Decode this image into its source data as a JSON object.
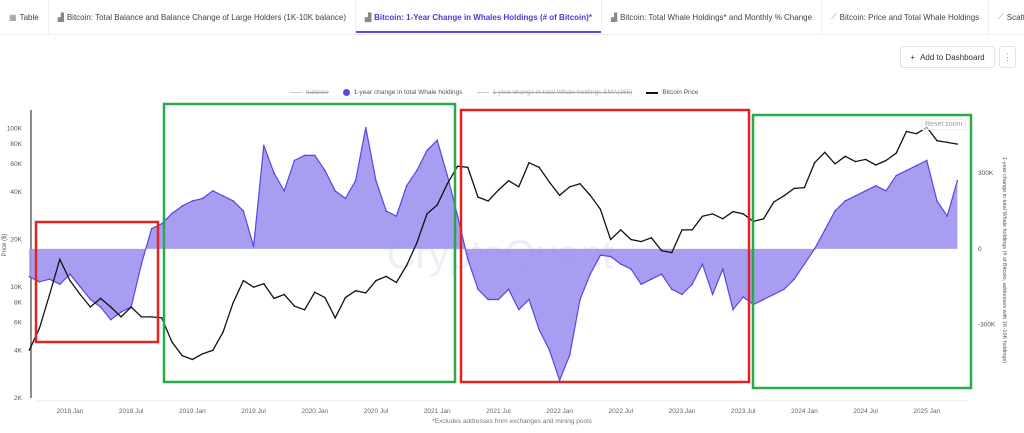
{
  "tabs": [
    {
      "label": "Table",
      "icon": "table-icon",
      "active": false
    },
    {
      "label": "Bitcoin: Total Balance and Balance Change of Large Holders (1K-10K balance)",
      "icon": "bar-chart-icon",
      "active": false
    },
    {
      "label": "Bitcoin: 1-Year Change in Whales Holdings (# of Bitcoin)*",
      "icon": "bar-chart-icon",
      "active": true
    },
    {
      "label": "Bitcoin: Total Whale Holdings* and Monthly % Change",
      "icon": "bar-chart-icon",
      "active": false
    },
    {
      "label": "Bitcoin: Price and Total Whale Holdings",
      "icon": "line-chart-icon",
      "active": false
    },
    {
      "label": "Scatter",
      "icon": "line-chart-icon",
      "active": false
    }
  ],
  "toolbar": {
    "add_to_dashboard": "Add to Dashboard",
    "plus_icon": "+",
    "more_icon": "⋮"
  },
  "legend": [
    {
      "label": "balance",
      "enabled": false
    },
    {
      "label": "1-year change in total Whale holdings",
      "enabled": true
    },
    {
      "label": "1-year change in total Whale holdings SMA(365)",
      "enabled": false
    },
    {
      "label": "Bitcoin Price",
      "enabled": true
    }
  ],
  "reset_zoom": "Reset zoom",
  "watermark": "CryptoQuant",
  "footnote": "*Excludes addresses from exchanges and mining pools",
  "colors": {
    "accent": "#5b45e0",
    "whale_fill": "#9d93f0",
    "price": "#111111",
    "red_box": "#e02424",
    "green_box": "#2aa84a"
  },
  "chart_data": {
    "type": "area+line",
    "ylabel_left": "Price ($)",
    "ylabel_right": "1-year change in total Whale holdings (# of Bitcoin, addresses with 1K-10K holdings)",
    "y_left_scale": "log",
    "y_left_lim": [
      2000,
      122000
    ],
    "y_left_ticks": [
      "2K",
      "4K",
      "6K",
      "8K",
      "10K",
      "20K",
      "40K",
      "60K",
      "80K",
      "100K"
    ],
    "y_left_tick_values": [
      2000,
      4000,
      6000,
      8000,
      10000,
      20000,
      40000,
      60000,
      80000,
      100000
    ],
    "y_right_lim": [
      -590000,
      530000
    ],
    "y_right_ticks": [
      "-300K",
      "0",
      "300K"
    ],
    "y_right_tick_values": [
      -300000,
      0,
      300000
    ],
    "x_ticks": [
      "2018 Jan",
      "2018 Jul",
      "2019 Jan",
      "2019 Jul",
      "2020 Jan",
      "2020 Jul",
      "2021 Jan",
      "2021 Jul",
      "2022 Jan",
      "2022 Jul",
      "2023 Jan",
      "2023 Jul",
      "2024 Jan",
      "2024 Jul",
      "2025 Jan"
    ],
    "x_tick_dates": [
      "2018-01",
      "2018-07",
      "2019-01",
      "2019-07",
      "2020-01",
      "2020-07",
      "2021-01",
      "2021-07",
      "2022-01",
      "2022-07",
      "2023-01",
      "2023-07",
      "2024-01",
      "2024-07",
      "2025-01"
    ],
    "x": [
      "2017-09",
      "2017-10",
      "2017-11",
      "2017-12",
      "2018-01",
      "2018-02",
      "2018-03",
      "2018-04",
      "2018-05",
      "2018-06",
      "2018-07",
      "2018-08",
      "2018-09",
      "2018-10",
      "2018-11",
      "2018-12",
      "2019-01",
      "2019-02",
      "2019-03",
      "2019-04",
      "2019-05",
      "2019-06",
      "2019-07",
      "2019-08",
      "2019-09",
      "2019-10",
      "2019-11",
      "2019-12",
      "2020-01",
      "2020-02",
      "2020-03",
      "2020-04",
      "2020-05",
      "2020-06",
      "2020-07",
      "2020-08",
      "2020-09",
      "2020-10",
      "2020-11",
      "2020-12",
      "2021-01",
      "2021-02",
      "2021-03",
      "2021-04",
      "2021-05",
      "2021-06",
      "2021-07",
      "2021-08",
      "2021-09",
      "2021-10",
      "2021-11",
      "2021-12",
      "2022-01",
      "2022-02",
      "2022-03",
      "2022-04",
      "2022-05",
      "2022-06",
      "2022-07",
      "2022-08",
      "2022-09",
      "2022-10",
      "2022-11",
      "2022-12",
      "2023-01",
      "2023-02",
      "2023-03",
      "2023-04",
      "2023-05",
      "2023-06",
      "2023-07",
      "2023-08",
      "2023-09",
      "2023-10",
      "2023-11",
      "2023-12",
      "2024-01",
      "2024-02",
      "2024-03",
      "2024-04",
      "2024-05",
      "2024-06",
      "2024-07",
      "2024-08",
      "2024-09",
      "2024-10",
      "2024-11",
      "2024-12",
      "2025-01",
      "2025-02",
      "2025-03",
      "2025-04"
    ],
    "series": [
      {
        "name": "1-year change in total Whale holdings",
        "axis": "right",
        "type": "area",
        "values": [
          -110000,
          -130000,
          -120000,
          -140000,
          -100000,
          -150000,
          -200000,
          -230000,
          -280000,
          -250000,
          -230000,
          -60000,
          80000,
          100000,
          140000,
          170000,
          190000,
          200000,
          230000,
          210000,
          190000,
          150000,
          10000,
          410000,
          300000,
          230000,
          350000,
          370000,
          370000,
          310000,
          230000,
          200000,
          270000,
          480000,
          270000,
          150000,
          130000,
          250000,
          310000,
          390000,
          430000,
          290000,
          130000,
          -40000,
          -160000,
          -200000,
          -200000,
          -160000,
          -240000,
          -200000,
          -320000,
          -400000,
          -520000,
          -420000,
          -200000,
          -100000,
          -25000,
          -30000,
          -60000,
          -80000,
          -140000,
          -120000,
          -100000,
          -160000,
          -180000,
          -140000,
          -60000,
          -180000,
          -80000,
          -240000,
          -190000,
          -220000,
          -200000,
          -180000,
          -160000,
          -120000,
          -60000,
          0,
          75000,
          150000,
          190000,
          210000,
          230000,
          250000,
          230000,
          290000,
          310000,
          330000,
          350000,
          190000,
          130000,
          270000
        ]
      },
      {
        "name": "Bitcoin Price",
        "axis": "left",
        "type": "line",
        "values": [
          4000,
          5500,
          9000,
          15000,
          11000,
          9000,
          7500,
          8500,
          7500,
          6500,
          7500,
          6500,
          6500,
          6400,
          4500,
          3700,
          3500,
          3800,
          4000,
          5200,
          8000,
          11000,
          10000,
          10500,
          8500,
          9000,
          7600,
          7200,
          9300,
          8600,
          6400,
          8600,
          9500,
          9200,
          11000,
          11700,
          10700,
          13700,
          19000,
          29000,
          33000,
          45000,
          58000,
          57000,
          37000,
          35000,
          41000,
          47000,
          43000,
          61000,
          57000,
          46000,
          38000,
          43000,
          45000,
          38000,
          31000,
          20000,
          23000,
          20000,
          19400,
          20500,
          17000,
          16500,
          23000,
          23000,
          28000,
          29000,
          27000,
          30000,
          29000,
          26000,
          27000,
          34500,
          37700,
          42000,
          42500,
          61000,
          71000,
          60000,
          67000,
          62000,
          64000,
          59000,
          63000,
          70000,
          96000,
          93000,
          102000,
          84000,
          82000,
          80000
        ]
      }
    ],
    "annotations": [
      {
        "color": "red",
        "from": "2017-09",
        "to": "2018-08"
      },
      {
        "color": "green",
        "from": "2018-09",
        "to": "2021-01"
      },
      {
        "color": "red",
        "from": "2021-02",
        "to": "2023-07"
      },
      {
        "color": "green",
        "from": "2023-07",
        "to": "2025-04"
      }
    ],
    "grid": false,
    "legend_position": "top"
  }
}
